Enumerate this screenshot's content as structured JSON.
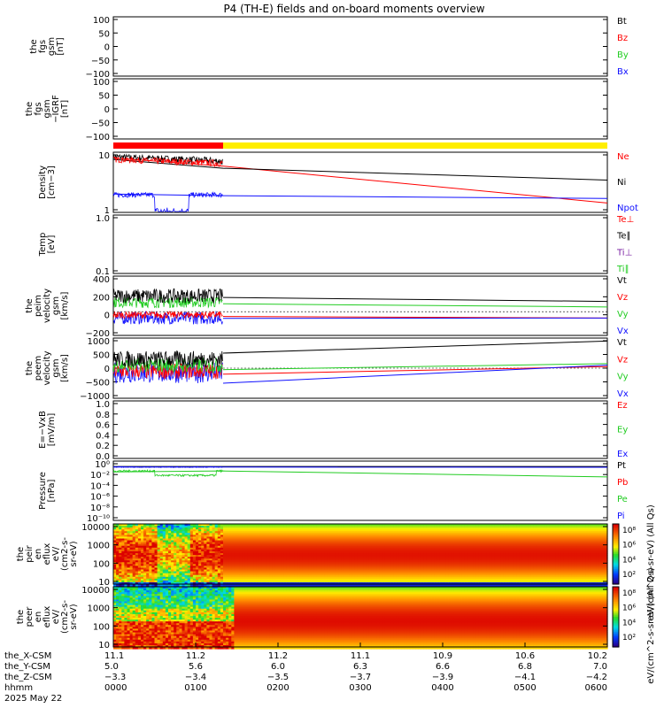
{
  "title": "P4 (TH-E) fields and on-board moments overview",
  "colors": {
    "black": "#000000",
    "red": "#ff0000",
    "green": "#22cc22",
    "blue": "#1010ff",
    "purple": "#7a1fa2",
    "yellow": "#ffee00"
  },
  "chart_data": [
    {
      "type": "line",
      "panel": "fgs",
      "ylabel_lines": [
        "the",
        "fgs",
        "gsm",
        "[nT]"
      ],
      "ylim": [
        -100,
        100
      ],
      "ticks": [
        "100",
        "50",
        "0",
        "−50",
        "−100"
      ],
      "legend": [
        {
          "label": "Bt",
          "color": "#000000"
        },
        {
          "label": "Bz",
          "color": "#ff0000"
        },
        {
          "label": "By",
          "color": "#22cc22"
        },
        {
          "label": "Bx",
          "color": "#1010ff"
        }
      ]
    },
    {
      "type": "line",
      "panel": "fgs-m",
      "ylabel_lines": [
        "the",
        "fgs",
        "gsm",
        "−IGRF",
        "[nT]"
      ],
      "ylim": [
        -120,
        100
      ],
      "ticks": [
        "100",
        "50",
        "0",
        "−50",
        "−100"
      ]
    },
    {
      "type": "bar",
      "panel": "mode-bar",
      "segments": [
        {
          "from_min": 0,
          "to_min": 80,
          "color": "#ff0000"
        },
        {
          "from_min": 80,
          "to_min": 360,
          "color": "#ffee00"
        }
      ]
    },
    {
      "type": "line",
      "panel": "density",
      "scale": "log",
      "ylabel_lines": [
        "Density",
        "[cm−3]"
      ],
      "ylim": [
        1,
        20
      ],
      "ticks": [
        "10",
        "1"
      ],
      "legend": [
        {
          "label": "Ne",
          "color": "#ff0000"
        },
        {
          "label": "Ni",
          "color": "#000000"
        },
        {
          "label": "Npot",
          "color": "#1010ff"
        }
      ],
      "series": [
        {
          "name": "Ne",
          "color": "#ff0000",
          "x_min": [
            0,
            80,
            360
          ],
          "y": [
            15,
            10,
            1.6
          ]
        },
        {
          "name": "Ni",
          "color": "#000000",
          "x_min": [
            0,
            80,
            360
          ],
          "y": [
            14,
            9,
            5
          ]
        },
        {
          "name": "Npot",
          "color": "#1010ff",
          "x_min": [
            0,
            80,
            360
          ],
          "y": [
            2.5,
            2.3,
            2.0
          ]
        }
      ]
    },
    {
      "type": "line",
      "panel": "temperature",
      "scale": "log",
      "ylabel_lines": [
        "Temp",
        "[eV]"
      ],
      "ylim": [
        0.1,
        1.0
      ],
      "ticks": [
        "1.0",
        "0.1"
      ],
      "legend": [
        {
          "label": "Te⊥",
          "color": "#ff0000"
        },
        {
          "label": "Te∥",
          "color": "#000000"
        },
        {
          "label": "Ti⊥",
          "color": "#7a1fa2"
        },
        {
          "label": "Ti∥",
          "color": "#22cc22"
        }
      ]
    },
    {
      "type": "line",
      "panel": "peim-velocity",
      "ylabel_lines": [
        "the",
        "peim",
        "velocity",
        "gsm",
        "[km/s]"
      ],
      "ylim": [
        -300,
        450
      ],
      "ticks": [
        "400",
        "200",
        "0",
        "−200"
      ],
      "legend": [
        {
          "label": "Vt",
          "color": "#000000"
        },
        {
          "label": "Vz",
          "color": "#ff0000"
        },
        {
          "label": "Vy",
          "color": "#22cc22"
        },
        {
          "label": "Vx",
          "color": "#1010ff"
        }
      ],
      "series": [
        {
          "name": "Vt",
          "color": "#000000",
          "x_min": [
            80,
            360
          ],
          "y": [
            180,
            130
          ]
        },
        {
          "name": "Vy",
          "color": "#22cc22",
          "x_min": [
            80,
            360
          ],
          "y": [
            100,
            60
          ]
        },
        {
          "name": "Vz",
          "color": "#ff0000",
          "x_min": [
            80,
            360
          ],
          "y": [
            -60,
            -80
          ]
        },
        {
          "name": "Vx",
          "color": "#1010ff",
          "x_min": [
            80,
            360
          ],
          "y": [
            -85,
            -80
          ]
        }
      ]
    },
    {
      "type": "line",
      "panel": "peem-velocity",
      "ylabel_lines": [
        "the",
        "peem",
        "velocity",
        "gsm",
        "[km/s]"
      ],
      "ylim": [
        -1000,
        1000
      ],
      "ticks": [
        "1000",
        "500",
        "0",
        "−500",
        "−1000"
      ],
      "legend": [
        {
          "label": "Vt",
          "color": "#000000"
        },
        {
          "label": "Vz",
          "color": "#ff0000"
        },
        {
          "label": "Vy",
          "color": "#22cc22"
        },
        {
          "label": "Vx",
          "color": "#1010ff"
        }
      ],
      "series": [
        {
          "name": "Vt",
          "color": "#000000",
          "x_min": [
            80,
            360
          ],
          "y": [
            500,
            900
          ]
        },
        {
          "name": "Vy",
          "color": "#22cc22",
          "x_min": [
            80,
            360
          ],
          "y": [
            -50,
            150
          ]
        },
        {
          "name": "Vz",
          "color": "#ff0000",
          "x_min": [
            80,
            360
          ],
          "y": [
            -200,
            50
          ]
        },
        {
          "name": "Vx",
          "color": "#1010ff",
          "x_min": [
            80,
            360
          ],
          "y": [
            -500,
            100
          ]
        }
      ]
    },
    {
      "type": "line",
      "panel": "efield",
      "ylabel_lines": [
        "E=−VxB",
        "[mV/m]"
      ],
      "ylim": [
        0,
        1
      ],
      "ticks": [
        "1.0",
        "0.8",
        "0.6",
        "0.4",
        "0.2",
        "0.0"
      ],
      "legend": [
        {
          "label": "Ez",
          "color": "#ff0000"
        },
        {
          "label": "Ey",
          "color": "#22cc22"
        },
        {
          "label": "Ex",
          "color": "#1010ff"
        }
      ]
    },
    {
      "type": "line",
      "panel": "pressure",
      "scale": "log",
      "ylabel_lines": [
        "Pressure",
        "[nPa]"
      ],
      "ylim": [
        -11,
        1
      ],
      "ticks": [
        "10⁰",
        "10⁻²",
        "10⁻⁴",
        "10⁻⁶",
        "10⁻⁸",
        "10⁻¹⁰"
      ],
      "legend": [
        {
          "label": "Pt",
          "color": "#000000"
        },
        {
          "label": "Pb",
          "color": "#ff0000"
        },
        {
          "label": "Pe",
          "color": "#22cc22"
        },
        {
          "label": "Pi",
          "color": "#1010ff"
        }
      ],
      "series": [
        {
          "name": "Pt",
          "color": "#000000",
          "x_min": [
            0,
            360
          ],
          "y": [
            -0.1,
            -0.1
          ]
        },
        {
          "name": "Pi",
          "color": "#1010ff",
          "x_min": [
            0,
            360
          ],
          "y": [
            -0.2,
            -0.25
          ]
        },
        {
          "name": "Pe",
          "color": "#22cc22",
          "x_min": [
            0,
            80,
            360
          ],
          "y": [
            -1.2,
            -1.0,
            -2.2
          ]
        }
      ]
    },
    {
      "type": "heatmap",
      "panel": "peir-spectrogram",
      "ylabel_lines": [
        "the",
        "peir",
        "en",
        "eflux",
        "eV/",
        "(cm2-s-",
        "sr-eV)"
      ],
      "ylim": [
        5,
        20000
      ],
      "ticks": [
        "10000",
        "1000",
        "100",
        "10"
      ]
    },
    {
      "type": "heatmap",
      "panel": "peer-spectrogram",
      "ylabel_lines": [
        "the",
        "peer",
        "en",
        "eflux",
        "eV/",
        "(cm2-s-",
        "sr-eV)"
      ],
      "ylim": [
        5,
        20000
      ],
      "ticks": [
        "10000",
        "1000",
        "100",
        "10"
      ]
    }
  ],
  "colorbar_top": {
    "label": "eV/(cm^2-s-sr-eV) (All Qs)",
    "ticks": [
      "10⁸",
      "10⁶",
      "10⁴",
      "10²"
    ]
  },
  "colorbar_bottom": {
    "label": "eV/(cm^2-s-sr-eV) (All Qs)",
    "ticks": [
      "10⁸",
      "10⁶",
      "10⁴",
      "10²"
    ]
  },
  "x_axis": {
    "row_labels": [
      "the_X-CSM",
      "the_Y-CSM",
      "the_Z-CSM",
      "hhmm",
      "2025 May 22"
    ],
    "columns": [
      {
        "x": "11.1",
        "y": "5.0",
        "z": "−3.3",
        "t": "0000"
      },
      {
        "x": "11.2",
        "y": "5.6",
        "z": "−3.4",
        "t": "0100"
      },
      {
        "x": "11.2",
        "y": "6.0",
        "z": "−3.5",
        "t": "0200"
      },
      {
        "x": "11.1",
        "y": "6.3",
        "z": "−3.7",
        "t": "0300"
      },
      {
        "x": "10.9",
        "y": "6.6",
        "z": "−3.9",
        "t": "0400"
      },
      {
        "x": "10.6",
        "y": "6.8",
        "z": "−4.1",
        "t": "0500"
      },
      {
        "x": "10.2",
        "y": "7.0",
        "z": "−4.2",
        "t": "0600"
      }
    ]
  }
}
